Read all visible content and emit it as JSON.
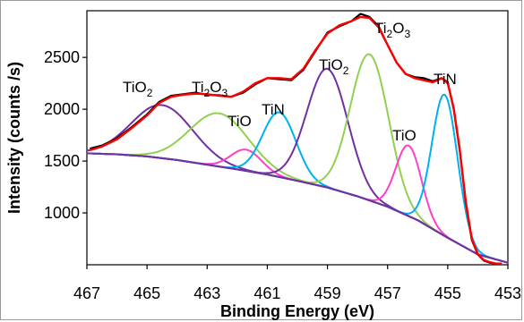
{
  "chart_data": {
    "type": "line",
    "xlabel": "Binding Energy (eV)",
    "ylabel": "Intensity (counts /s)",
    "xlim": [
      467,
      453
    ],
    "ylim": [
      500,
      2950
    ],
    "x_reversed": true,
    "x_ticks": [
      "467",
      "465",
      "463",
      "461",
      "459",
      "457",
      "455",
      "453"
    ],
    "y_ticks": [
      "1000",
      "1500",
      "2000",
      "2500"
    ],
    "x_tick_values": [
      467,
      465,
      463,
      461,
      459,
      457,
      455,
      453
    ],
    "y_tick_values": [
      1000,
      1500,
      2000,
      2500
    ],
    "grid": false,
    "baseline": {
      "color": "#7030a0",
      "x": [
        467,
        466,
        465,
        464,
        463,
        462,
        461,
        460,
        459,
        458,
        457,
        456,
        455,
        454,
        453
      ],
      "y": [
        1575,
        1565,
        1545,
        1510,
        1465,
        1420,
        1370,
        1310,
        1245,
        1160,
        1060,
        930,
        760,
        600,
        520
      ]
    },
    "components": [
      {
        "label_parts": [
          "TiO",
          "2",
          ""
        ],
        "color": "#7030a0",
        "center": 464.5,
        "fwhm": 2.4,
        "height": 2040
      },
      {
        "label_parts": [
          "Ti",
          "2",
          "O",
          "3"
        ],
        "color": "#92d050",
        "center": 462.6,
        "fwhm": 2.3,
        "height": 1960
      },
      {
        "label_parts": [
          "TiO",
          "",
          ""
        ],
        "color": "#ff3fc8",
        "center": 461.7,
        "fwhm": 1.2,
        "height": 1610
      },
      {
        "label_parts": [
          "TiN",
          "",
          ""
        ],
        "color": "#00b0f0",
        "center": 460.6,
        "fwhm": 1.3,
        "height": 1970
      },
      {
        "label_parts": [
          "TiO",
          "2",
          ""
        ],
        "color": "#7030a0",
        "center": 459.0,
        "fwhm": 1.6,
        "height": 2390
      },
      {
        "label_parts": [
          "Ti",
          "2",
          "O",
          "3"
        ],
        "color": "#92d050",
        "center": 457.6,
        "fwhm": 1.5,
        "height": 2530
      },
      {
        "label_parts": [
          "TiO",
          "",
          ""
        ],
        "color": "#ff3fc8",
        "center": 456.3,
        "fwhm": 1.0,
        "height": 1650
      },
      {
        "label_parts": [
          "TiN",
          "",
          ""
        ],
        "color": "#00b0f0",
        "center": 455.1,
        "fwhm": 1.0,
        "height": 2140
      }
    ],
    "measured": {
      "color": "#000000",
      "x": [
        466.9,
        466.5,
        466.0,
        465.5,
        465.0,
        464.6,
        464.2,
        463.8,
        463.4,
        463.0,
        462.6,
        462.2,
        461.8,
        461.4,
        461.0,
        460.6,
        460.2,
        459.8,
        459.4,
        459.0,
        458.6,
        458.2,
        457.9,
        457.6,
        457.3,
        457.0,
        456.7,
        456.4,
        456.1,
        455.8,
        455.5,
        455.2,
        455.0,
        454.8,
        454.6,
        454.4,
        454.2,
        454.0,
        453.8,
        453.6,
        453.4,
        453.2
      ],
      "y": [
        1620,
        1650,
        1720,
        1830,
        1950,
        2070,
        2130,
        2145,
        2160,
        2140,
        2135,
        2120,
        2160,
        2240,
        2300,
        2290,
        2280,
        2380,
        2560,
        2740,
        2800,
        2850,
        2920,
        2890,
        2800,
        2620,
        2450,
        2340,
        2310,
        2300,
        2270,
        2300,
        2260,
        2000,
        1600,
        1100,
        740,
        600,
        540,
        520,
        510,
        510
      ]
    },
    "fit": {
      "color": "#ff0000",
      "x": [
        466.9,
        466.5,
        466.0,
        465.5,
        465.0,
        464.6,
        464.2,
        463.8,
        463.4,
        463.0,
        462.6,
        462.2,
        461.8,
        461.4,
        461.0,
        460.6,
        460.2,
        459.8,
        459.4,
        459.0,
        458.6,
        458.2,
        457.9,
        457.6,
        457.3,
        457.0,
        456.7,
        456.4,
        456.1,
        455.8,
        455.5,
        455.2,
        455.0,
        454.8,
        454.6,
        454.4,
        454.2,
        454.0,
        453.8,
        453.6,
        453.4,
        453.2
      ],
      "y": [
        1605,
        1640,
        1710,
        1820,
        1940,
        2060,
        2120,
        2140,
        2150,
        2145,
        2130,
        2120,
        2170,
        2250,
        2300,
        2300,
        2290,
        2390,
        2570,
        2730,
        2810,
        2850,
        2890,
        2880,
        2790,
        2620,
        2450,
        2340,
        2300,
        2280,
        2260,
        2300,
        2250,
        2010,
        1610,
        1110,
        750,
        605,
        545,
        525,
        512,
        510
      ]
    }
  },
  "page": {
    "peak_labels": [
      {
        "parts": [
          "TiO",
          "2",
          "",
          ""
        ]
      },
      {
        "parts": [
          "Ti",
          "2",
          "O",
          "3"
        ]
      },
      {
        "parts": [
          "TiO",
          "",
          "",
          ""
        ]
      },
      {
        "parts": [
          "TiN",
          "",
          "",
          ""
        ]
      },
      {
        "parts": [
          "TiO",
          "2",
          "",
          ""
        ]
      },
      {
        "parts": [
          "Ti",
          "2",
          "O",
          "3"
        ]
      },
      {
        "parts": [
          "TiO",
          "",
          "",
          ""
        ]
      },
      {
        "parts": [
          "TiN",
          "",
          "",
          ""
        ]
      }
    ]
  }
}
